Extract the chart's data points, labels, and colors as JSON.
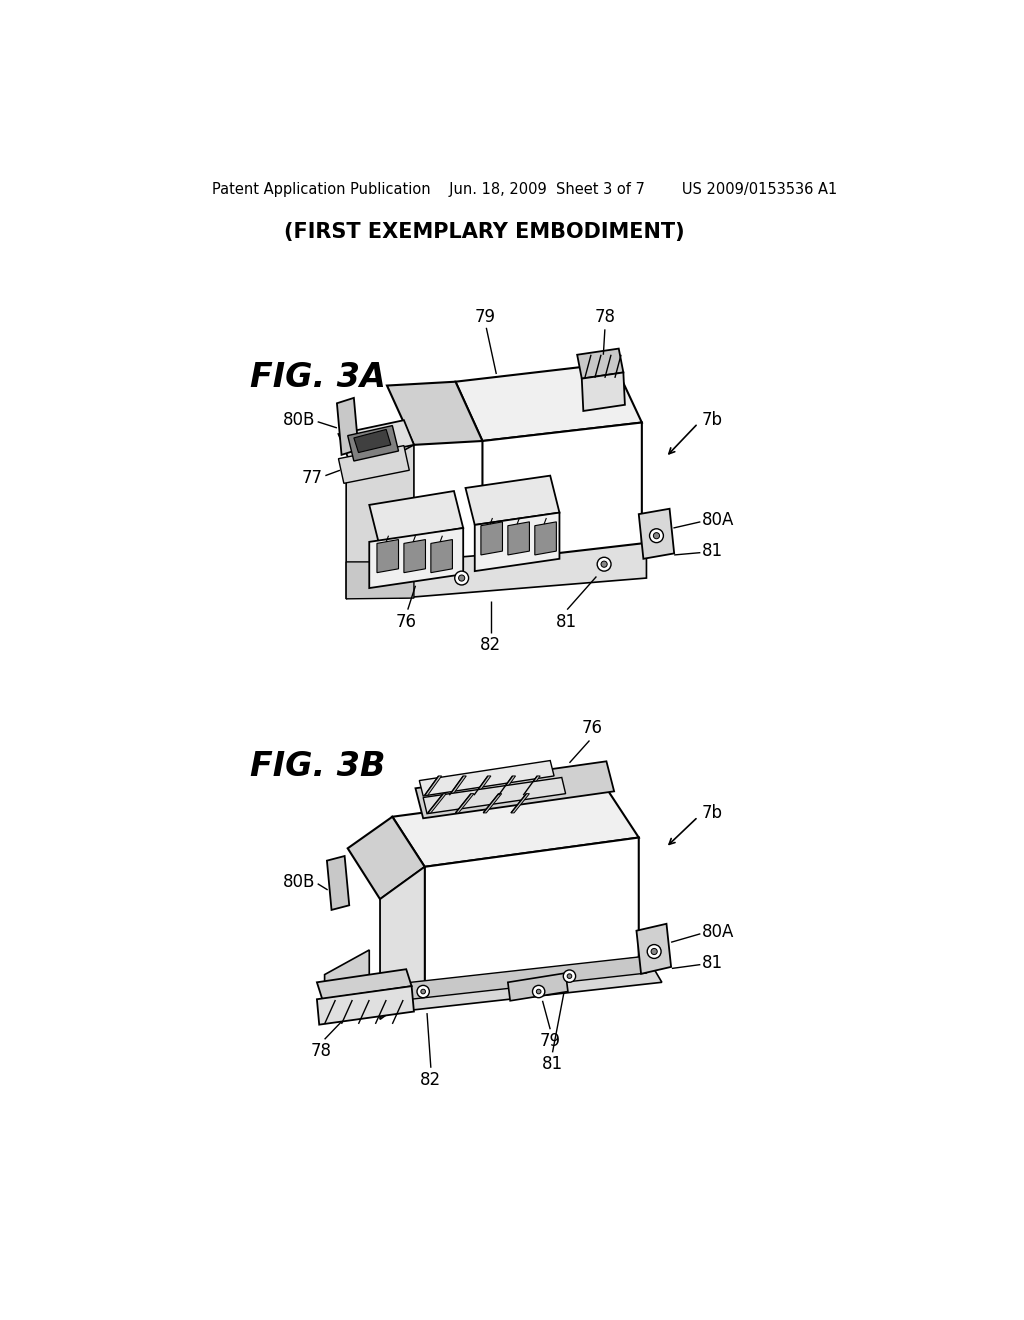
{
  "background_color": "#ffffff",
  "header_text": "Patent Application Publication    Jun. 18, 2009  Sheet 3 of 7        US 2009/0153536 A1",
  "subtitle": "(FIRST EXEMPLARY EMBODIMENT)",
  "fig3a_label": "FIG. 3A",
  "fig3b_label": "FIG. 3B",
  "line_color": "#000000",
  "text_color": "#000000",
  "header_fontsize": 10.5,
  "subtitle_fontsize": 15,
  "fig_label_fontsize": 24,
  "annotation_fontsize": 12
}
